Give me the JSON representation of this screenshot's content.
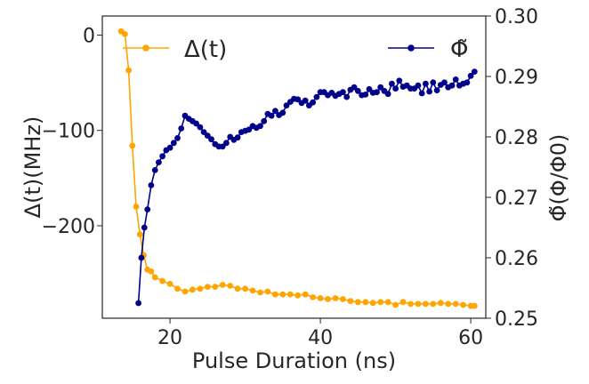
{
  "chart_data": {
    "type": "line",
    "xlabel": "Pulse Duration (ns)",
    "ylabel_left": "Δ(t)(MHz)",
    "ylabel_right": "Φ̃(Φ/Φ0)",
    "xlim": [
      11,
      62
    ],
    "ylim_left": [
      -297,
      20
    ],
    "ylim_right": [
      0.25,
      0.3
    ],
    "x_ticks": [
      20,
      40,
      60
    ],
    "left_ticks": [
      0,
      -100,
      -200
    ],
    "right_ticks": [
      "0.25",
      "0.26",
      "0.27",
      "0.28",
      "0.29",
      "0.30"
    ],
    "legend": {
      "placement": "top",
      "left_series": "Δ(t)",
      "right_series": "Φ̃"
    },
    "colors": {
      "delta": "#ffa500",
      "phi": "#00008b"
    },
    "series": [
      {
        "name": "Δ(t)",
        "axis": "left",
        "x": [
          13.5,
          14.0,
          14.5,
          15.0,
          15.5,
          16.0,
          16.5,
          17.0,
          17.5,
          18.0,
          19.0,
          20.0,
          21.0,
          22.0,
          23.0,
          24.0,
          25.0,
          26.0,
          27.0,
          28.0,
          29.0,
          30.0,
          31.0,
          32.0,
          33.0,
          34.0,
          35.0,
          36.0,
          37.0,
          38.0,
          39.0,
          40.0,
          41.0,
          42.0,
          43.0,
          44.0,
          45.0,
          46.0,
          47.0,
          48.0,
          49.0,
          50.0,
          51.0,
          52.0,
          53.0,
          54.0,
          55.0,
          56.0,
          57.0,
          58.0,
          59.0,
          60.0,
          60.5
        ],
        "values": [
          4,
          1,
          -37,
          -116,
          -180,
          -209,
          -231,
          -246,
          -248,
          -254,
          -258,
          -261,
          -266,
          -269,
          -267,
          -266,
          -264,
          -264,
          -262,
          -263,
          -266,
          -266,
          -268,
          -270,
          -269,
          -272,
          -272,
          -272,
          -273,
          -272,
          -275,
          -276,
          -277,
          -276,
          -277,
          -279,
          -280,
          -280,
          -281,
          -280,
          -280,
          -283,
          -280,
          -282,
          -282,
          -282,
          -282,
          -281,
          -282,
          -282,
          -283,
          -284,
          -284
        ]
      },
      {
        "name": "Φ̃",
        "axis": "right",
        "x": [
          15.8,
          16.2,
          16.6,
          17.0,
          17.5,
          18.0,
          18.5,
          19.0,
          19.5,
          20.0,
          20.5,
          21.0,
          21.5,
          22.0,
          22.5,
          23.0,
          23.5,
          24.0,
          24.5,
          25.0,
          25.5,
          26.0,
          26.5,
          27.0,
          27.5,
          28.0,
          28.5,
          29.0,
          29.5,
          30.0,
          30.5,
          31.0,
          31.5,
          32.0,
          32.5,
          33.0,
          33.5,
          34.0,
          34.5,
          35.0,
          35.5,
          36.0,
          36.5,
          37.0,
          37.5,
          38.0,
          38.5,
          39.0,
          39.5,
          40.0,
          40.5,
          41.0,
          41.5,
          42.0,
          42.5,
          43.0,
          43.5,
          44.0,
          44.5,
          45.0,
          45.5,
          46.0,
          46.5,
          47.0,
          47.5,
          48.0,
          48.5,
          49.0,
          49.5,
          50.0,
          50.5,
          51.0,
          51.5,
          52.0,
          52.5,
          53.0,
          53.5,
          54.0,
          54.5,
          55.0,
          55.5,
          56.0,
          56.5,
          57.0,
          57.5,
          58.0,
          58.5,
          59.0,
          59.5,
          60.0,
          60.5
        ],
        "values": [
          0.2525,
          0.26,
          0.265,
          0.268,
          0.272,
          0.2745,
          0.2758,
          0.2768,
          0.2778,
          0.2782,
          0.279,
          0.2798,
          0.2814,
          0.2835,
          0.283,
          0.2826,
          0.2822,
          0.2816,
          0.2808,
          0.2802,
          0.2796,
          0.2788,
          0.2784,
          0.2784,
          0.279,
          0.28,
          0.2795,
          0.2799,
          0.2808,
          0.281,
          0.2812,
          0.2818,
          0.2815,
          0.2818,
          0.2826,
          0.2838,
          0.2835,
          0.2843,
          0.2836,
          0.284,
          0.2852,
          0.2858,
          0.2863,
          0.2862,
          0.2856,
          0.286,
          0.2852,
          0.2857,
          0.2866,
          0.2874,
          0.2874,
          0.2869,
          0.2873,
          0.2868,
          0.2871,
          0.2874,
          0.2866,
          0.2878,
          0.2882,
          0.2876,
          0.2869,
          0.287,
          0.2879,
          0.2873,
          0.2874,
          0.2882,
          0.2876,
          0.2871,
          0.2888,
          0.288,
          0.2893,
          0.2883,
          0.2885,
          0.288,
          0.288,
          0.2885,
          0.2872,
          0.2888,
          0.2875,
          0.289,
          0.2877,
          0.2886,
          0.289,
          0.2882,
          0.2885,
          0.2895,
          0.2885,
          0.2888,
          0.289,
          0.2901,
          0.2908
        ]
      }
    ]
  }
}
